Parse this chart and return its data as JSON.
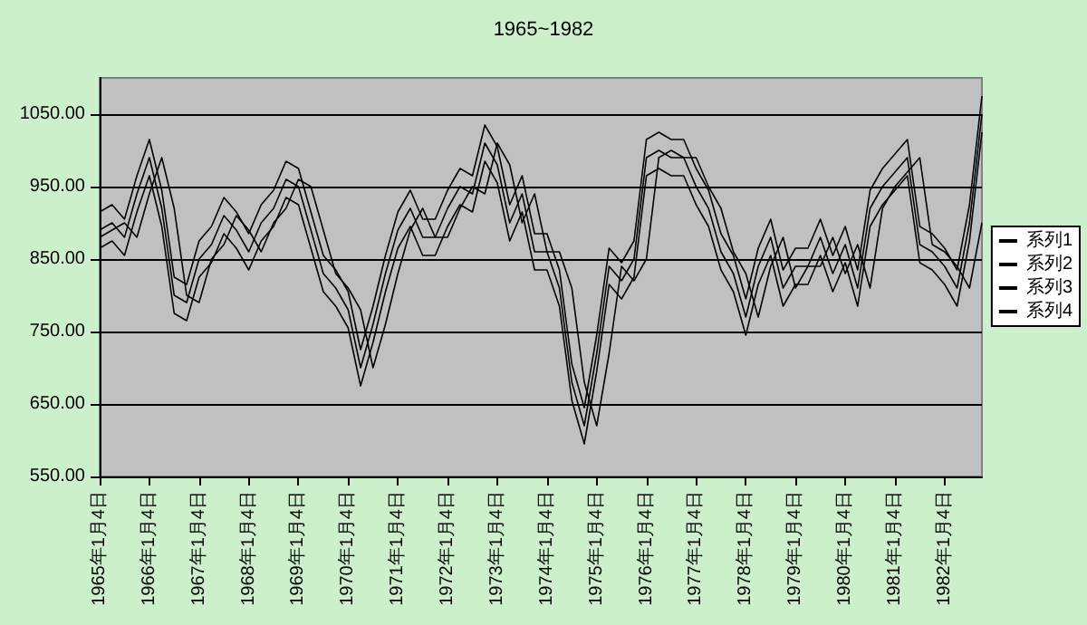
{
  "chart_data": {
    "type": "line",
    "title": "1965~1982",
    "categories": [
      "1965年1月4日",
      null,
      null,
      null,
      "1966年1月4日",
      null,
      null,
      null,
      "1967年1月4日",
      null,
      null,
      null,
      "1968年1月4日",
      null,
      null,
      null,
      "1969年1月4日",
      null,
      null,
      null,
      "1970年1月4日",
      null,
      null,
      null,
      "1971年1月4日",
      null,
      null,
      null,
      "1972年1月4日",
      null,
      null,
      null,
      "1973年1月4日",
      null,
      null,
      null,
      "1974年1月4日",
      null,
      null,
      null,
      "1975年1月4日",
      null,
      null,
      null,
      "1976年1月4日",
      null,
      null,
      null,
      "1977年1月4日",
      null,
      null,
      null,
      "1978年1月4日",
      null,
      null,
      null,
      "1979年1月4日",
      null,
      null,
      null,
      "1980年1月4日",
      null,
      null,
      null,
      "1981年1月4日",
      null,
      null,
      null,
      "1982年1月4日",
      null,
      null,
      null
    ],
    "series": [
      {
        "name": "系列1",
        "color": "#000000",
        "values": [
          880,
          890,
          900,
          880,
          940,
          990,
          920,
          800,
          790,
          850,
          870,
          910,
          890,
          860,
          900,
          920,
          960,
          950,
          890,
          830,
          810,
          780,
          700,
          760,
          830,
          890,
          920,
          880,
          880,
          920,
          950,
          940,
          1010,
          980,
          900,
          940,
          860,
          860,
          810,
          680,
          620,
          720,
          840,
          820,
          850,
          990,
          1000,
          990,
          990,
          950,
          920,
          860,
          830,
          770,
          840,
          880,
          810,
          840,
          840,
          880,
          830,
          870,
          810,
          920,
          950,
          970,
          990,
          870,
          860,
          840,
          810,
          900
        ]
      },
      {
        "name": "系列2",
        "color": "#000000",
        "values": [
          915,
          925,
          905,
          965,
          1015,
          945,
          825,
          815,
          875,
          895,
          935,
          915,
          885,
          925,
          945,
          985,
          975,
          915,
          855,
          835,
          805,
          725,
          785,
          855,
          915,
          945,
          905,
          905,
          945,
          975,
          965,
          1035,
          1005,
          925,
          965,
          885,
          885,
          835,
          705,
          645,
          745,
          865,
          845,
          875,
          1015,
          1025,
          1015,
          1015,
          975,
          945,
          885,
          855,
          795,
          865,
          905,
          835,
          865,
          865,
          905,
          855,
          895,
          835,
          945,
          975,
          995,
          1015,
          895,
          885,
          865,
          835,
          925,
          1075
        ]
      },
      {
        "name": "系列3",
        "color": "#000000",
        "values": [
          865,
          875,
          855,
          915,
          965,
          895,
          775,
          765,
          825,
          845,
          885,
          865,
          835,
          875,
          895,
          935,
          925,
          865,
          805,
          785,
          755,
          675,
          735,
          805,
          865,
          895,
          855,
          855,
          895,
          925,
          915,
          985,
          955,
          875,
          915,
          835,
          835,
          785,
          655,
          595,
          695,
          815,
          795,
          825,
          965,
          975,
          965,
          965,
          925,
          895,
          835,
          805,
          745,
          815,
          855,
          785,
          815,
          815,
          855,
          805,
          845,
          785,
          895,
          925,
          945,
          965,
          845,
          835,
          815,
          785,
          875,
          1025
        ]
      },
      {
        "name": "系列4",
        "color": "#000000",
        "values": [
          890,
          900,
          880,
          940,
          990,
          920,
          800,
          790,
          850,
          870,
          910,
          890,
          860,
          900,
          920,
          960,
          950,
          890,
          830,
          810,
          780,
          700,
          760,
          830,
          890,
          920,
          880,
          880,
          920,
          950,
          940,
          1010,
          980,
          900,
          940,
          860,
          860,
          810,
          680,
          620,
          720,
          840,
          820,
          850,
          990,
          1000,
          990,
          990,
          950,
          920,
          860,
          830,
          770,
          840,
          880,
          810,
          840,
          840,
          880,
          830,
          870,
          810,
          920,
          950,
          970,
          990,
          870,
          860,
          840,
          810,
          900,
          1050
        ]
      }
    ],
    "ylim": [
      550,
      1100
    ],
    "yticks": [
      {
        "value": 550,
        "label": "550.00"
      },
      {
        "value": 650,
        "label": "650.00"
      },
      {
        "value": 750,
        "label": "750.00"
      },
      {
        "value": 850,
        "label": "850.00"
      },
      {
        "value": 950,
        "label": "950.00"
      },
      {
        "value": 1050,
        "label": "1050.00"
      }
    ],
    "grid": "y",
    "legend": "right",
    "marker": "none"
  }
}
